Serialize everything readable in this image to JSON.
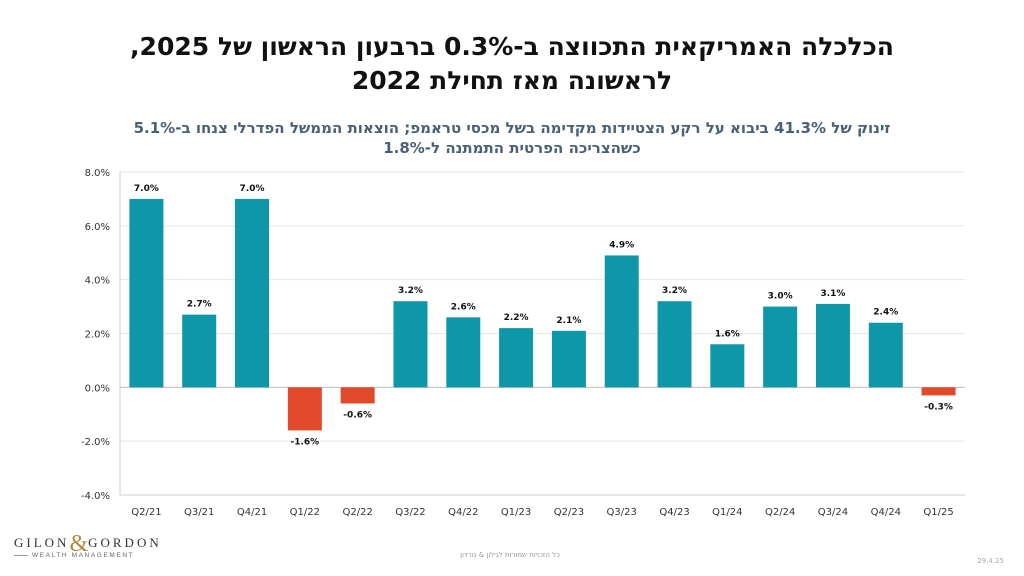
{
  "header": {
    "title_line1": "הכלכלה האמריקאית התכווצה ב-0.3% ברבעון הראשון של 2025,",
    "title_line2": "לראשונה מאז תחילת 2022",
    "subtitle_line1": "זינוק של 41.3% ביבוא על רקע הצטיידות מקדימה בשל מכסי טראמפ; הוצאות הממשל הפדרלי צנחו ב-5.1%",
    "subtitle_line2": "כשהצריכה הפרטית התמתנה ל-1.8%"
  },
  "chart_data": {
    "type": "bar",
    "title": "",
    "xlabel": "",
    "ylabel": "",
    "categories": [
      "Q2/21",
      "Q3/21",
      "Q4/21",
      "Q1/22",
      "Q2/22",
      "Q3/22",
      "Q4/22",
      "Q1/23",
      "Q2/23",
      "Q3/23",
      "Q4/23",
      "Q1/24",
      "Q2/24",
      "Q3/24",
      "Q4/24",
      "Q1/25"
    ],
    "values": [
      7.0,
      2.7,
      7.0,
      -1.6,
      -0.6,
      3.2,
      2.6,
      2.2,
      2.1,
      4.9,
      3.2,
      1.6,
      3.0,
      3.1,
      2.4,
      -0.3
    ],
    "data_labels": [
      "7.0%",
      "2.7%",
      "7.0%",
      "-1.6%",
      "-0.6%",
      "3.2%",
      "2.6%",
      "2.2%",
      "2.1%",
      "4.9%",
      "3.2%",
      "1.6%",
      "3.0%",
      "3.1%",
      "2.4%",
      "-0.3%"
    ],
    "ylim": [
      -4.0,
      8.0
    ],
    "yticks": [
      -4.0,
      -2.0,
      0.0,
      2.0,
      4.0,
      6.0,
      8.0
    ],
    "ytick_labels": [
      "-4.0%",
      "-2.0%",
      "0.0%",
      "2.0%",
      "4.0%",
      "6.0%",
      "8.0%"
    ],
    "grid": true,
    "legend": "none",
    "colors": {
      "positive": "#0e97a8",
      "negative": "#e04a2a"
    }
  },
  "footer": {
    "logo_text_left": "GILON",
    "logo_ampersand": "&",
    "logo_text_right": "GORDON",
    "logo_subtitle": "WEALTH MANAGEMENT",
    "note": "כל הזכויות שמורות לגילון & גורדון",
    "date": "29.4.25"
  }
}
